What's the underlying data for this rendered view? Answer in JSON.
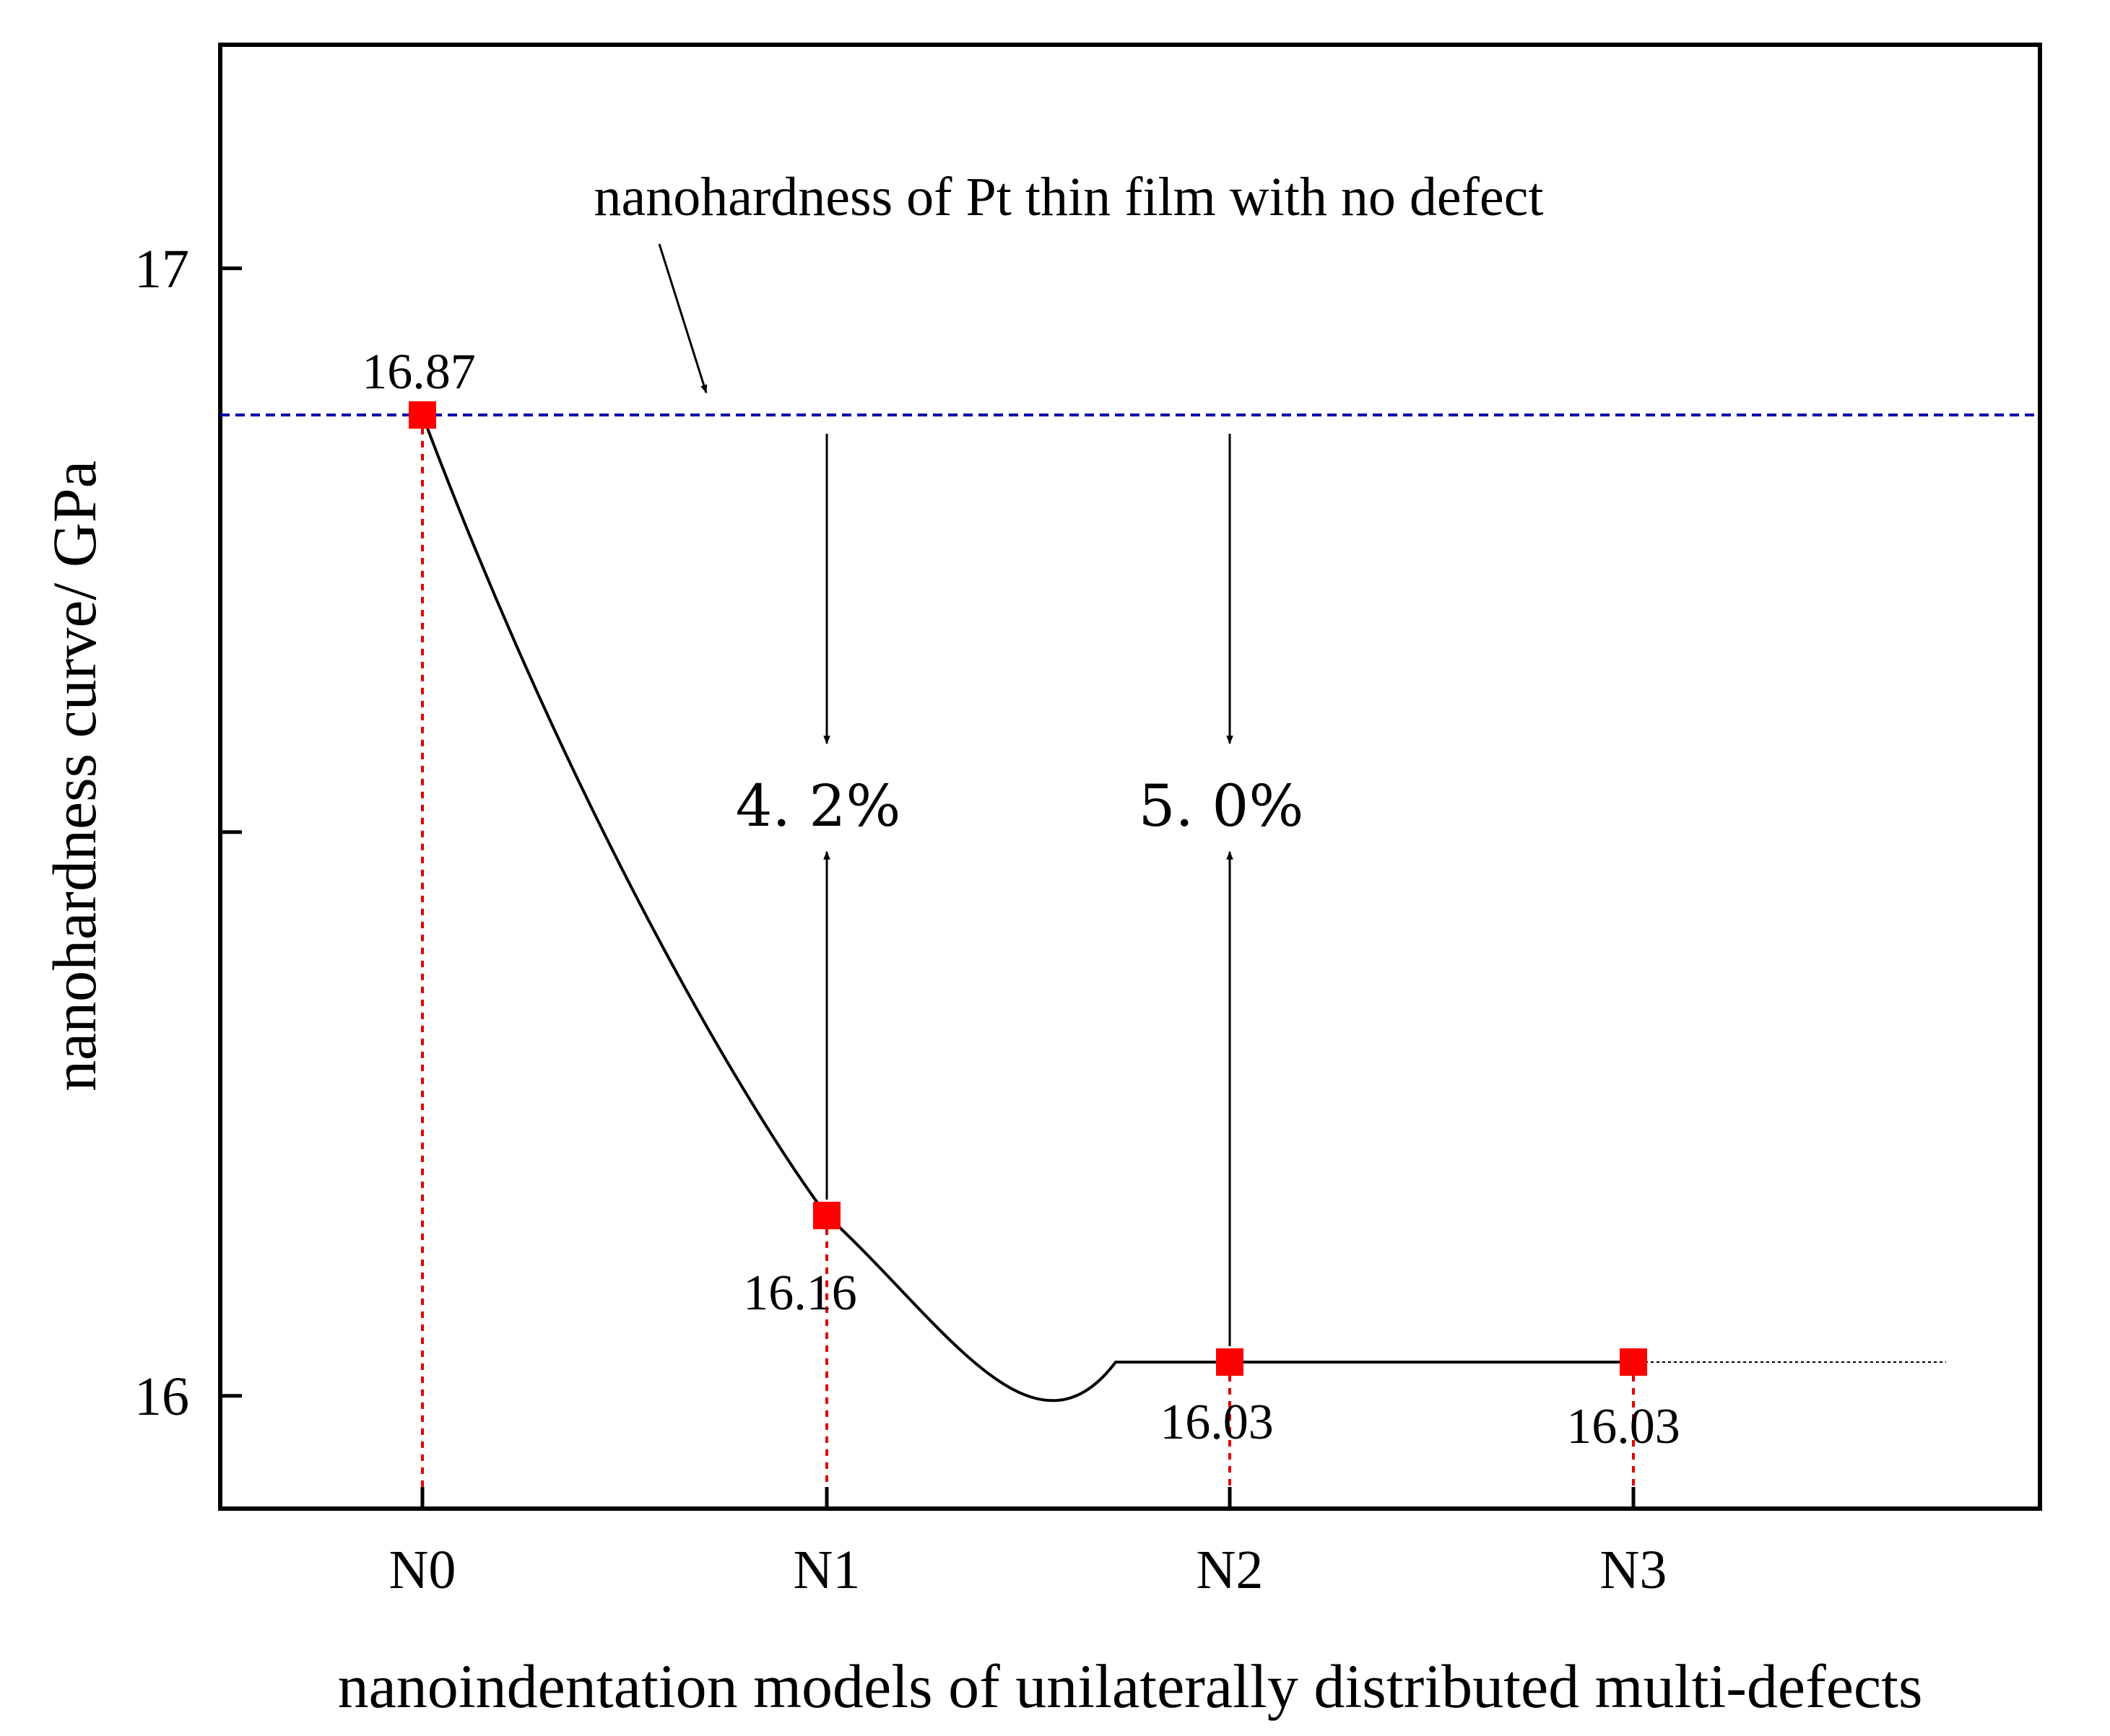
{
  "chart_data": {
    "type": "line",
    "title": "",
    "xlabel": "nanoindentation models of unilaterally distributed multi-defects",
    "ylabel": "nanohardness curve/ GPa",
    "categories": [
      "N0",
      "N1",
      "N2",
      "N3"
    ],
    "series": [
      {
        "name": "nanohardness",
        "values": [
          16.87,
          16.16,
          16.03,
          16.03
        ],
        "marker": "square"
      }
    ],
    "data_labels": [
      "16.87",
      "16.16",
      "16.03",
      "16.03"
    ],
    "y_ticks": [
      {
        "value": 17,
        "label": "17"
      },
      {
        "value": 16.5,
        "label": ""
      },
      {
        "value": 16,
        "label": "16"
      }
    ],
    "ylim": [
      15.9,
      17.2
    ],
    "reference_line": {
      "value": 16.87,
      "label": "nanohardness of Pt thin film with no defect"
    },
    "reductions": [
      {
        "category": "N1",
        "label": "4. 2%"
      },
      {
        "category": "N2",
        "label": "5. 0%"
      }
    ],
    "grid": false,
    "colors": {
      "marker": "#ff0000",
      "drop_line": "#e00000",
      "reference": "#0000aa",
      "curve": "#000000"
    }
  }
}
